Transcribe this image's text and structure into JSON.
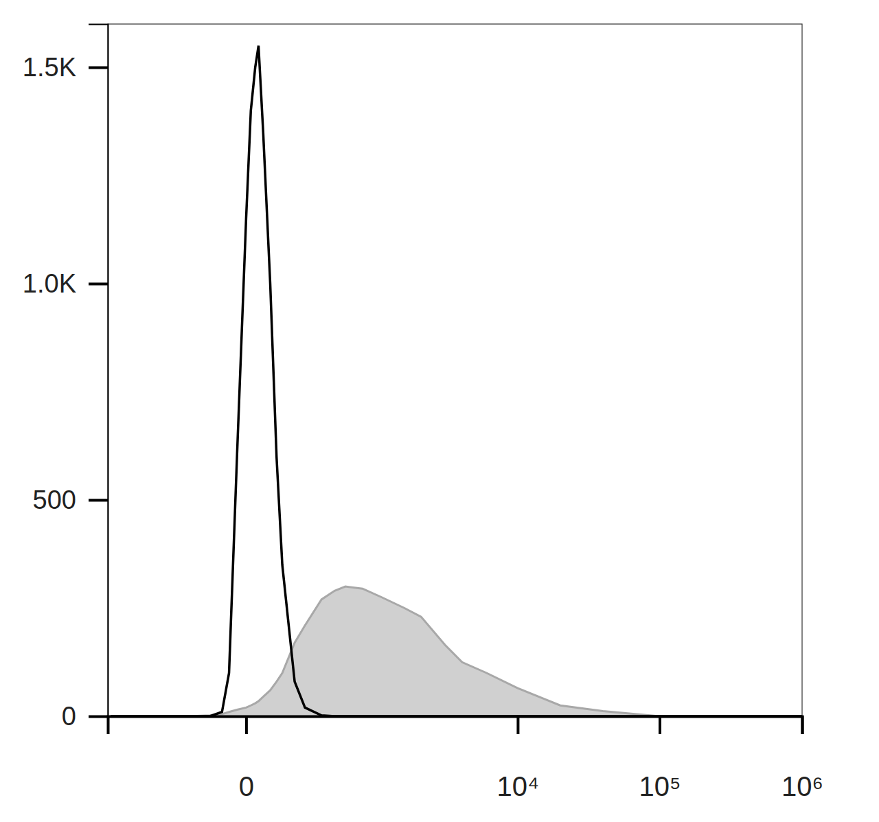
{
  "chart_data": {
    "type": "line",
    "log": "x",
    "x": [
      -1000,
      -200,
      -100,
      -60,
      -40,
      -20,
      0,
      10,
      20,
      28,
      40,
      60,
      80,
      100,
      150,
      200,
      300,
      400,
      500,
      700,
      1000,
      1500,
      2000,
      3000,
      4000,
      6000,
      10000,
      20000,
      40000,
      100000,
      1000000
    ],
    "series": [
      {
        "type": "area",
        "color": "#d0d0d0",
        "values": [
          0,
          0,
          2,
          5,
          10,
          15,
          20,
          25,
          30,
          35,
          45,
          60,
          80,
          100,
          170,
          210,
          270,
          290,
          300,
          295,
          275,
          250,
          230,
          165,
          125,
          100,
          65,
          25,
          12,
          0,
          0
        ]
      },
      {
        "type": "line",
        "color": "#000000",
        "values": [
          0,
          0,
          0,
          10,
          100,
          600,
          1150,
          1400,
          1500,
          1550,
          1350,
          1000,
          600,
          350,
          80,
          20,
          2,
          0,
          0,
          0,
          0,
          0,
          0,
          0,
          0,
          0,
          0,
          0,
          0,
          0,
          0
        ]
      }
    ],
    "xlim": [
      -1050,
      1000000
    ],
    "xticks": [
      0,
      {
        "value": 10000,
        "label": "10⁴"
      },
      {
        "value": 100000,
        "label": "10⁵"
      },
      {
        "value": 1000000,
        "label": "10⁶"
      }
    ],
    "ylim": [
      0,
      1600
    ],
    "yticks": [
      0,
      500,
      {
        "value": 1000,
        "label": "1.0K"
      },
      {
        "value": 1500,
        "label": "1.5K"
      }
    ]
  }
}
